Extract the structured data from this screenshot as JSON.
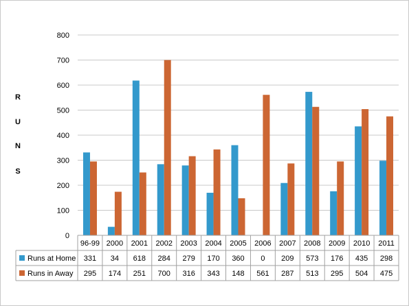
{
  "chart_data": {
    "type": "bar",
    "title": "",
    "xlabel": "",
    "ylabel": "RUNS",
    "ylabel_letters": [
      "R",
      "U",
      "N",
      "S"
    ],
    "ylim": [
      0,
      800
    ],
    "yticks": [
      "0",
      "100",
      "200",
      "300",
      "400",
      "500",
      "600",
      "700",
      "800"
    ],
    "grid": true,
    "legend_position": "table-left",
    "categories": [
      "96-99",
      "2000",
      "2001",
      "2002",
      "2003",
      "2004",
      "2005",
      "2006",
      "2007",
      "2008",
      "2009",
      "2010",
      "2011"
    ],
    "series": [
      {
        "name": "Runs at Home",
        "color": "#3399CC",
        "values": [
          331,
          34,
          618,
          284,
          279,
          170,
          360,
          0,
          209,
          573,
          176,
          435,
          298
        ]
      },
      {
        "name": "Runs in Away",
        "color": "#CC6633",
        "values": [
          295,
          174,
          251,
          700,
          316,
          343,
          148,
          561,
          287,
          513,
          295,
          504,
          475
        ]
      }
    ]
  }
}
